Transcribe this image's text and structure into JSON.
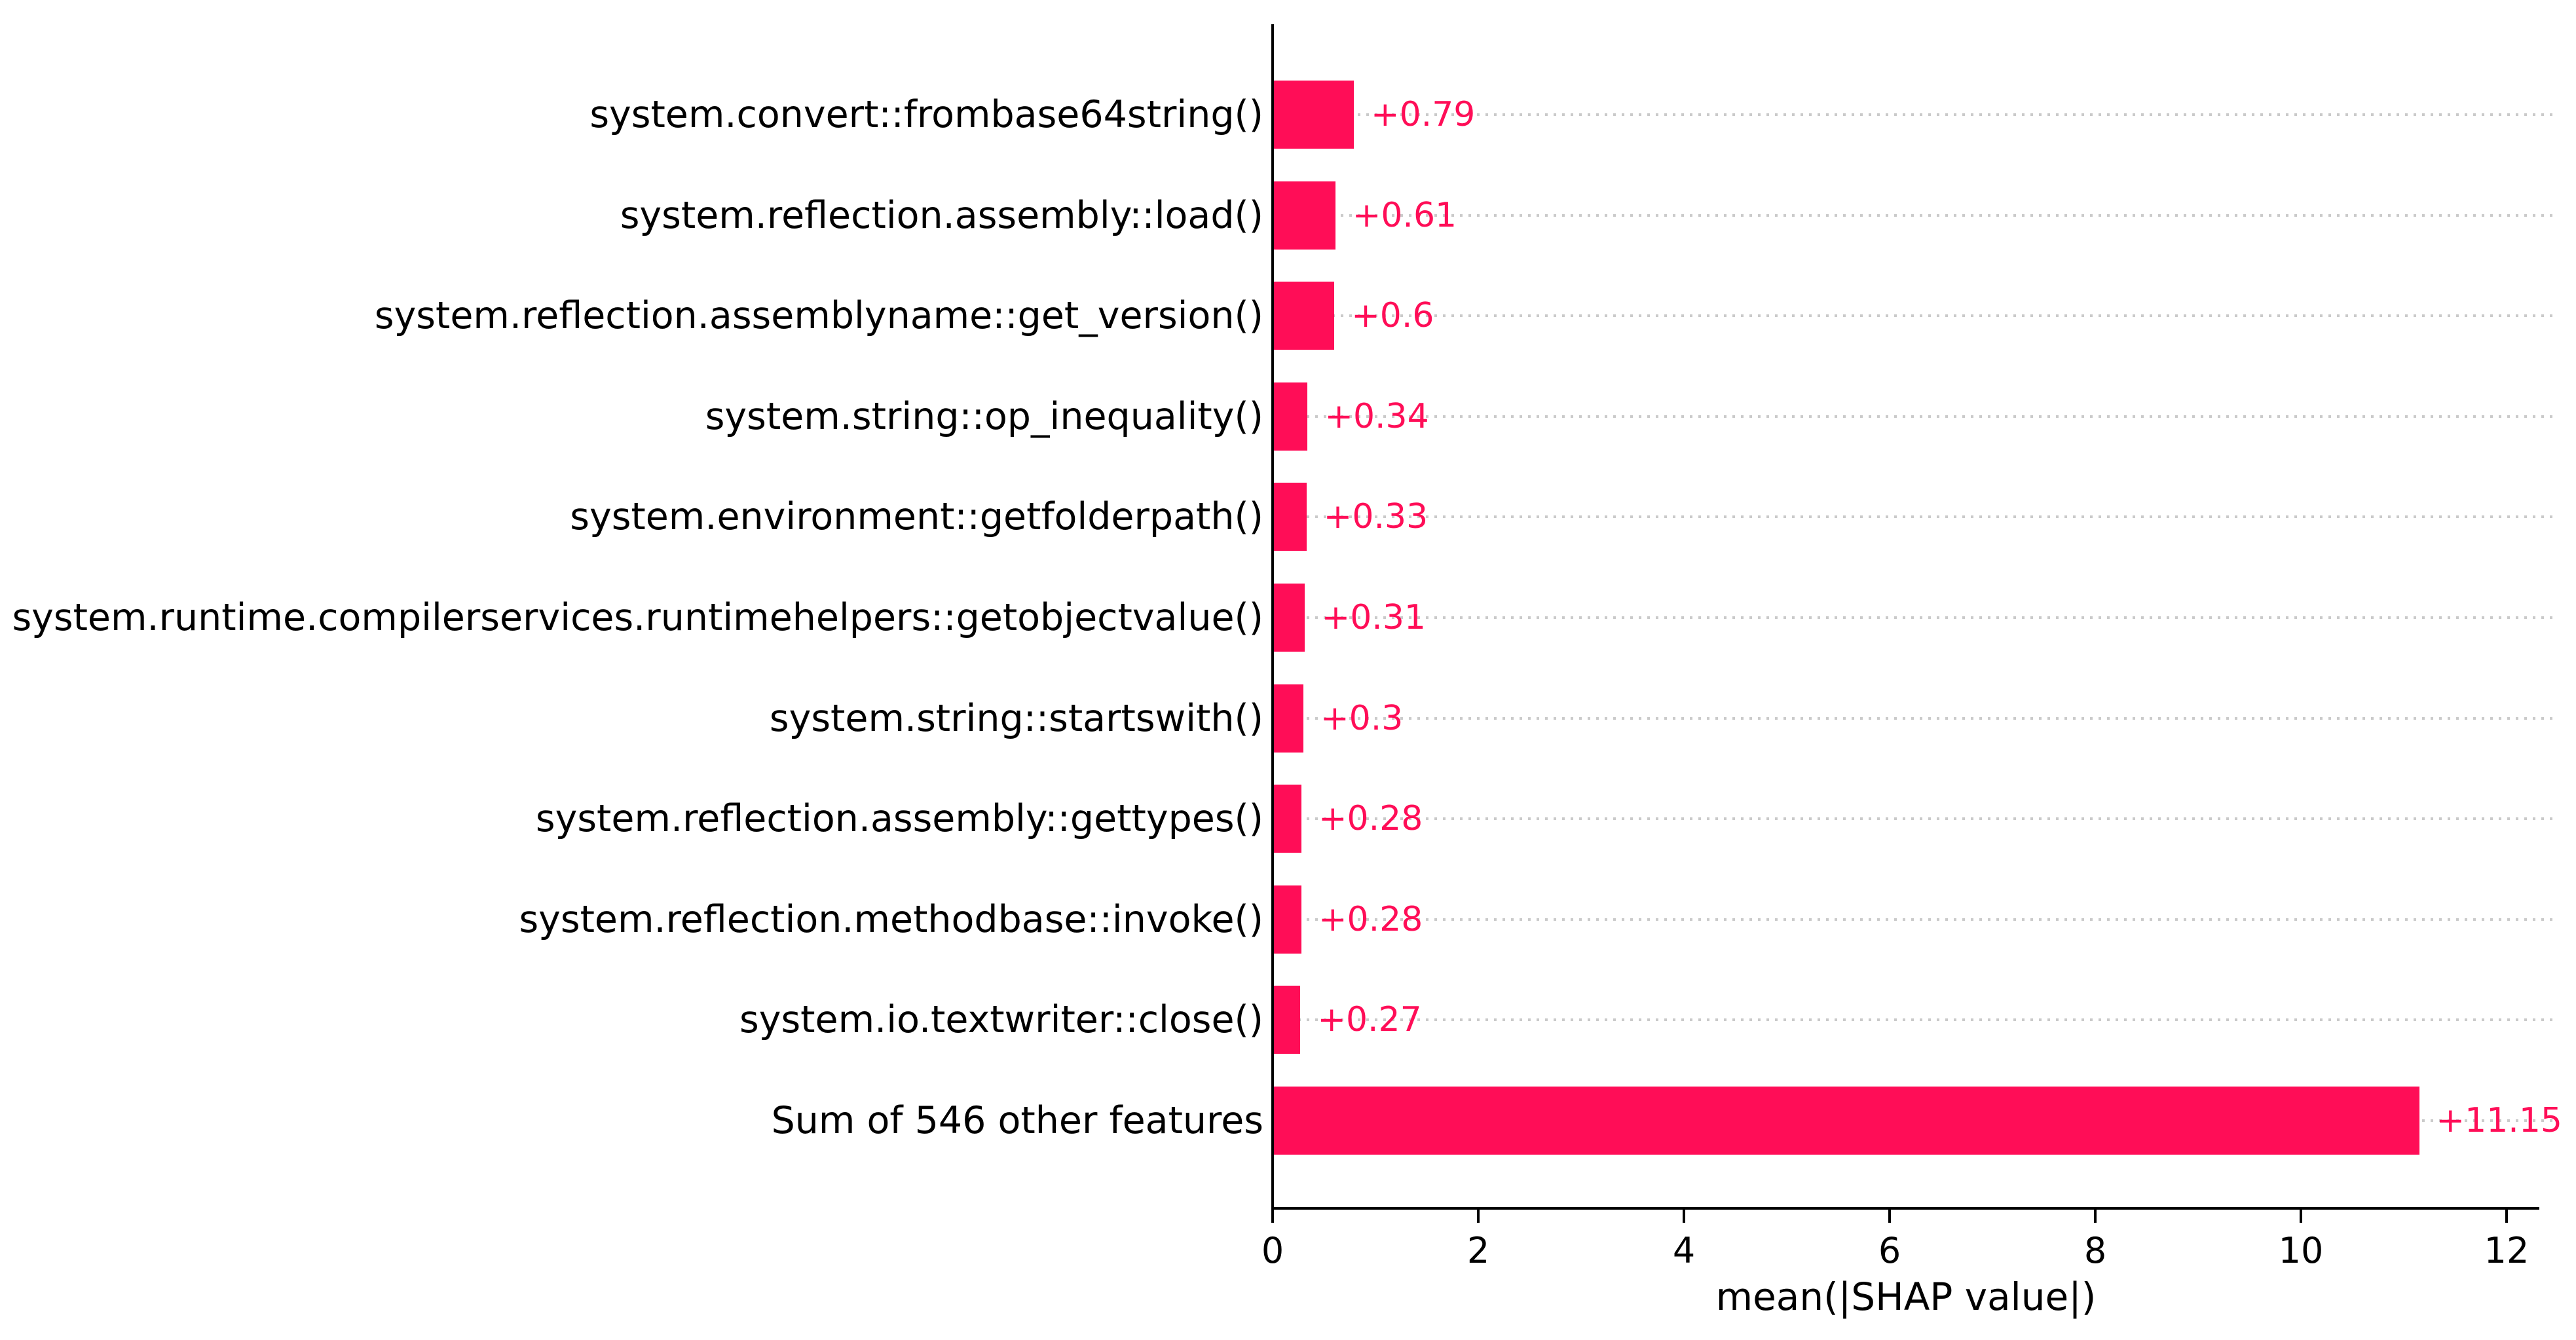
{
  "chart_data": {
    "type": "bar",
    "orientation": "horizontal",
    "title": "",
    "xlabel": "mean(|SHAP value|)",
    "ylabel": "",
    "xlim": [
      0,
      12.5
    ],
    "xticks": [
      0,
      2,
      4,
      6,
      8,
      10,
      12
    ],
    "grid": "dotted horizontal row guides, light gray",
    "legend": "none",
    "bar_color": "#ff0d57",
    "value_label_color": "#ff0d57",
    "axis_color": "#000000",
    "gridline_color": "#cacaca",
    "categories": [
      "system.convert::frombase64string()",
      "system.reflection.assembly::load()",
      "system.reflection.assemblyname::get_version()",
      "system.string::op_inequality()",
      "system.environment::getfolderpath()",
      "system.runtime.compilerservices.runtimehelpers::getobjectvalue()",
      "system.string::startswith()",
      "system.reflection.assembly::gettypes()",
      "system.reflection.methodbase::invoke()",
      "system.io.textwriter::close()",
      "Sum of 546 other features"
    ],
    "values": [
      0.79,
      0.61,
      0.6,
      0.34,
      0.33,
      0.31,
      0.3,
      0.28,
      0.28,
      0.27,
      11.15
    ],
    "value_labels": [
      "+0.79",
      "+0.61",
      "+0.6",
      "+0.34",
      "+0.33",
      "+0.31",
      "+0.3",
      "+0.28",
      "+0.28",
      "+0.27",
      "+11.15"
    ]
  }
}
